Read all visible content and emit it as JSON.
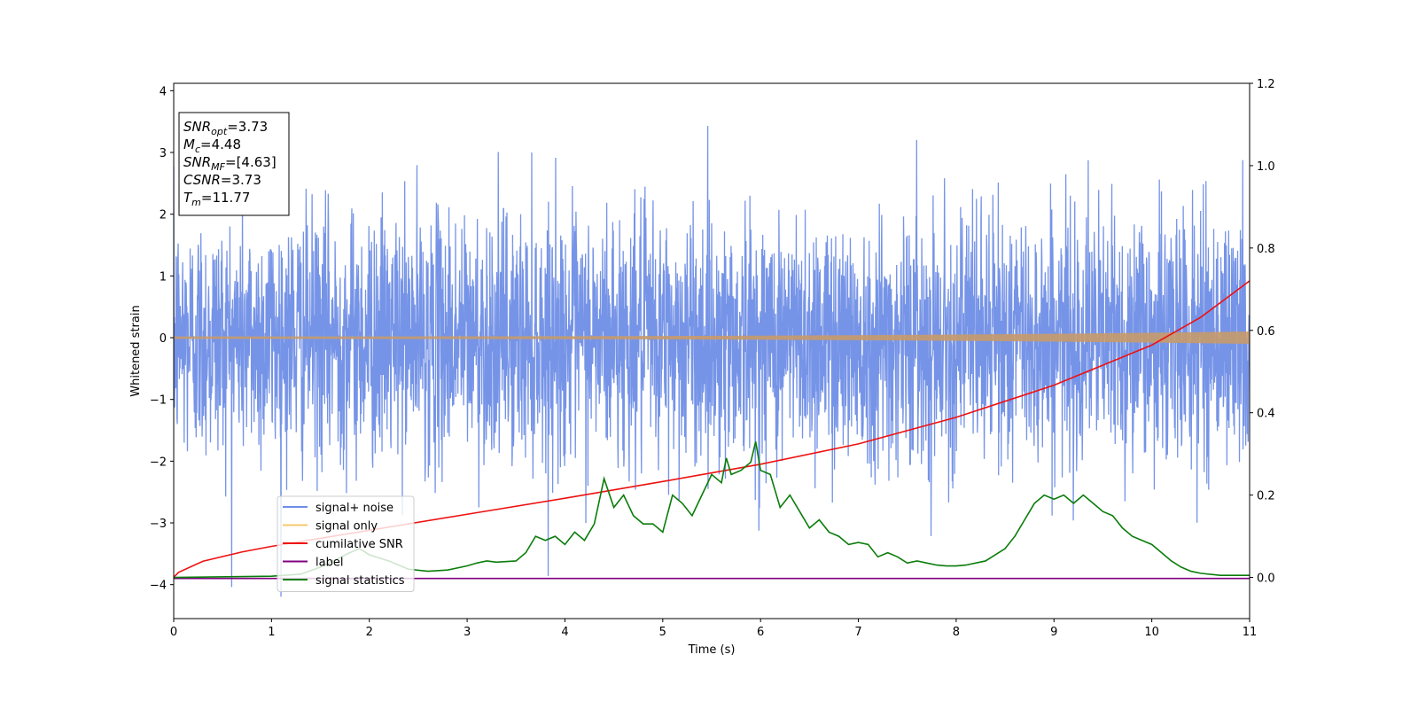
{
  "chart_data": {
    "type": "line",
    "xlabel": "Time (s)",
    "ylabel": "Whitened strain",
    "xlim": [
      0,
      11
    ],
    "ylim_left": [
      -4.55,
      4.12
    ],
    "ylim_right": [
      -0.1,
      1.2
    ],
    "x_ticks": [
      0,
      1,
      2,
      3,
      4,
      5,
      6,
      7,
      8,
      9,
      10,
      11
    ],
    "y_ticks_left": [
      {
        "value": 4,
        "label": "4"
      },
      {
        "value": 3,
        "label": "3"
      },
      {
        "value": 2,
        "label": "2"
      },
      {
        "value": 1,
        "label": "1"
      },
      {
        "value": 0,
        "label": "0"
      },
      {
        "value": -1,
        "label": "−1"
      },
      {
        "value": -2,
        "label": "−2"
      },
      {
        "value": -3,
        "label": "−3"
      },
      {
        "value": -4,
        "label": "−4"
      }
    ],
    "y_ticks_right": [
      {
        "value": 1.2,
        "label": "1.2"
      },
      {
        "value": 1.0,
        "label": "1.0"
      },
      {
        "value": 0.8,
        "label": "0.8"
      },
      {
        "value": 0.6,
        "label": "0.6"
      },
      {
        "value": 0.4,
        "label": "0.4"
      },
      {
        "value": 0.2,
        "label": "0.2"
      },
      {
        "value": 0.0,
        "label": "0.0"
      }
    ],
    "legend_position": "lower-left",
    "series": [
      {
        "name": "signal+ noise",
        "color": "#6f8ee6",
        "axis": "left",
        "kind": "noise",
        "amplitude": 1.0,
        "x_range": [
          0,
          11
        ]
      },
      {
        "name": "signal only",
        "color": "#e8b060",
        "axis": "left",
        "kind": "chirp",
        "start_amplitude": 0.02,
        "end_amplitude": 0.1,
        "x_range": [
          0,
          11
        ]
      },
      {
        "name": "cumilative SNR",
        "color": "#ee1111",
        "axis": "left",
        "x": [
          0,
          0.05,
          0.3,
          0.7,
          1,
          2,
          3,
          4,
          5,
          6,
          7,
          8,
          9,
          10,
          10.5,
          11
        ],
        "y": [
          -3.88,
          -3.8,
          -3.62,
          -3.47,
          -3.38,
          -3.12,
          -2.86,
          -2.6,
          -2.33,
          -2.05,
          -1.72,
          -1.29,
          -0.77,
          -0.12,
          0.33,
          0.92
        ]
      },
      {
        "name": "label",
        "color": "#800080",
        "axis": "left",
        "x": [
          0,
          11
        ],
        "y": [
          -3.9,
          -3.9
        ]
      },
      {
        "name": "signal statistics",
        "color": "#0a7d0a",
        "axis": "right",
        "x": [
          0,
          1,
          1.3,
          1.5,
          1.8,
          1.9,
          2,
          2.2,
          2.4,
          2.6,
          2.8,
          3,
          3.1,
          3.2,
          3.3,
          3.5,
          3.6,
          3.7,
          3.8,
          3.9,
          4,
          4.1,
          4.2,
          4.3,
          4.4,
          4.5,
          4.6,
          4.7,
          4.8,
          4.9,
          5,
          5.1,
          5.2,
          5.3,
          5.4,
          5.5,
          5.6,
          5.65,
          5.7,
          5.8,
          5.9,
          5.95,
          6,
          6.1,
          6.2,
          6.3,
          6.4,
          6.5,
          6.6,
          6.7,
          6.8,
          6.9,
          7,
          7.1,
          7.2,
          7.3,
          7.4,
          7.5,
          7.6,
          7.7,
          7.8,
          7.9,
          8,
          8.1,
          8.3,
          8.5,
          8.6,
          8.7,
          8.8,
          8.9,
          9,
          9.1,
          9.2,
          9.3,
          9.4,
          9.5,
          9.6,
          9.7,
          9.8,
          9.9,
          10,
          10.1,
          10.2,
          10.3,
          10.4,
          10.5,
          10.7,
          11
        ],
        "y": [
          0.0,
          0.003,
          0.008,
          0.025,
          0.06,
          0.07,
          0.055,
          0.04,
          0.02,
          0.015,
          0.018,
          0.028,
          0.035,
          0.04,
          0.037,
          0.04,
          0.06,
          0.1,
          0.09,
          0.1,
          0.08,
          0.11,
          0.09,
          0.13,
          0.24,
          0.17,
          0.2,
          0.15,
          0.13,
          0.13,
          0.11,
          0.2,
          0.18,
          0.15,
          0.2,
          0.25,
          0.23,
          0.29,
          0.25,
          0.26,
          0.28,
          0.33,
          0.26,
          0.25,
          0.17,
          0.2,
          0.16,
          0.12,
          0.14,
          0.11,
          0.1,
          0.08,
          0.085,
          0.08,
          0.05,
          0.06,
          0.05,
          0.035,
          0.04,
          0.035,
          0.03,
          0.028,
          0.028,
          0.03,
          0.04,
          0.07,
          0.1,
          0.14,
          0.18,
          0.2,
          0.19,
          0.2,
          0.18,
          0.2,
          0.18,
          0.16,
          0.15,
          0.12,
          0.1,
          0.09,
          0.08,
          0.06,
          0.04,
          0.025,
          0.015,
          0.01,
          0.005,
          0.005
        ]
      }
    ],
    "info_box": [
      {
        "sym": "SNR",
        "sub": "opt",
        "rest": "=3.73"
      },
      {
        "sym": "M",
        "sub": "c",
        "rest": "=4.48"
      },
      {
        "sym": "SNR",
        "sub": "MF",
        "rest": "=[4.63]"
      },
      {
        "sym": "CSNR",
        "sub": "",
        "rest": "=3.73"
      },
      {
        "sym": "T",
        "sub": "m",
        "rest": "=11.77"
      }
    ]
  }
}
